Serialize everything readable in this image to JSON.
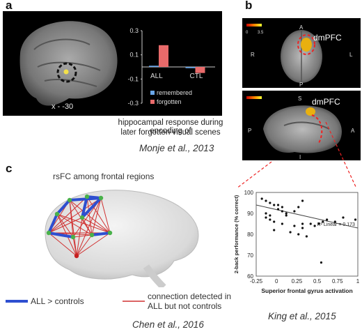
{
  "panels": {
    "a": {
      "letter": "a",
      "slice_label": "x - -30",
      "caption_line1": "hippocampal response during encoding of",
      "caption_line2": "later forgotten visual scenes",
      "citation": "Monje et al., 2013"
    },
    "b": {
      "letter": "b",
      "colorbar_min": "0",
      "colorbar_max": "3.5",
      "region_label": "dmPFC",
      "axial_labels": {
        "anterior": "A",
        "posterior": "P",
        "right": "R",
        "left": "L"
      },
      "sagittal_labels": {
        "superior": "S",
        "inferior": "I",
        "posterior": "P",
        "anterior": "A"
      },
      "citation": "King et al., 2015"
    },
    "c": {
      "letter": "c",
      "title": "rsFC among frontal regions",
      "legend_blue": "ALL > controls",
      "legend_red_line1": "connection detected in",
      "legend_red_line2": "ALL but not controls",
      "citation": "Chen et al., 2016"
    }
  },
  "chart_data": [
    {
      "type": "bar",
      "categories": [
        "ALL",
        "CTL"
      ],
      "series": [
        {
          "name": "remembered",
          "values": [
            0.01,
            -0.01
          ],
          "color": "#6aa6e8"
        },
        {
          "name": "forgotten",
          "values": [
            0.18,
            -0.05
          ],
          "color": "#e86a6a"
        }
      ],
      "yticks": [
        "0.3",
        "0.1",
        "-0.1",
        "-0.3"
      ],
      "ylim": [
        -0.3,
        0.3
      ],
      "legend_position": "bottom"
    },
    {
      "type": "scatter",
      "xlabel": "Superior frontal gyrus activation",
      "ylabel": "2-back performance (% correct)",
      "xticks": [
        "-0.25",
        "0",
        "0.25",
        "0.5",
        "0.75",
        "1"
      ],
      "ytick_labels": [
        "100",
        "90",
        "80",
        "70",
        "60"
      ],
      "xlim": [
        -0.25,
        1.0
      ],
      "ylim": [
        60,
        100
      ],
      "annotation": "R² Linear = 0.173",
      "fit_line": {
        "x": [
          -0.25,
          1.0
        ],
        "y": [
          94,
          83
        ]
      },
      "x": [
        -0.18,
        -0.13,
        -0.08,
        -0.03,
        0.02,
        0.07,
        -0.13,
        -0.08,
        0.02,
        0.07,
        0.12,
        0.22,
        0.27,
        0.32,
        -0.13,
        -0.08,
        -0.03,
        0.12,
        0.22,
        0.32,
        0.42,
        0.52,
        0.62,
        0.82,
        0.97,
        -0.03,
        0.17,
        0.27,
        0.37,
        0.47,
        0.57,
        0.72,
        0.55,
        0.07,
        0.32
      ],
      "y": [
        97,
        96,
        95,
        94,
        94,
        93,
        90,
        89,
        92,
        91,
        90,
        91,
        93,
        96,
        88,
        87,
        86,
        89,
        84,
        85,
        85,
        85,
        87,
        88,
        87,
        82,
        81,
        80,
        79,
        84,
        86,
        86,
        66.5,
        85,
        83
      ]
    }
  ]
}
